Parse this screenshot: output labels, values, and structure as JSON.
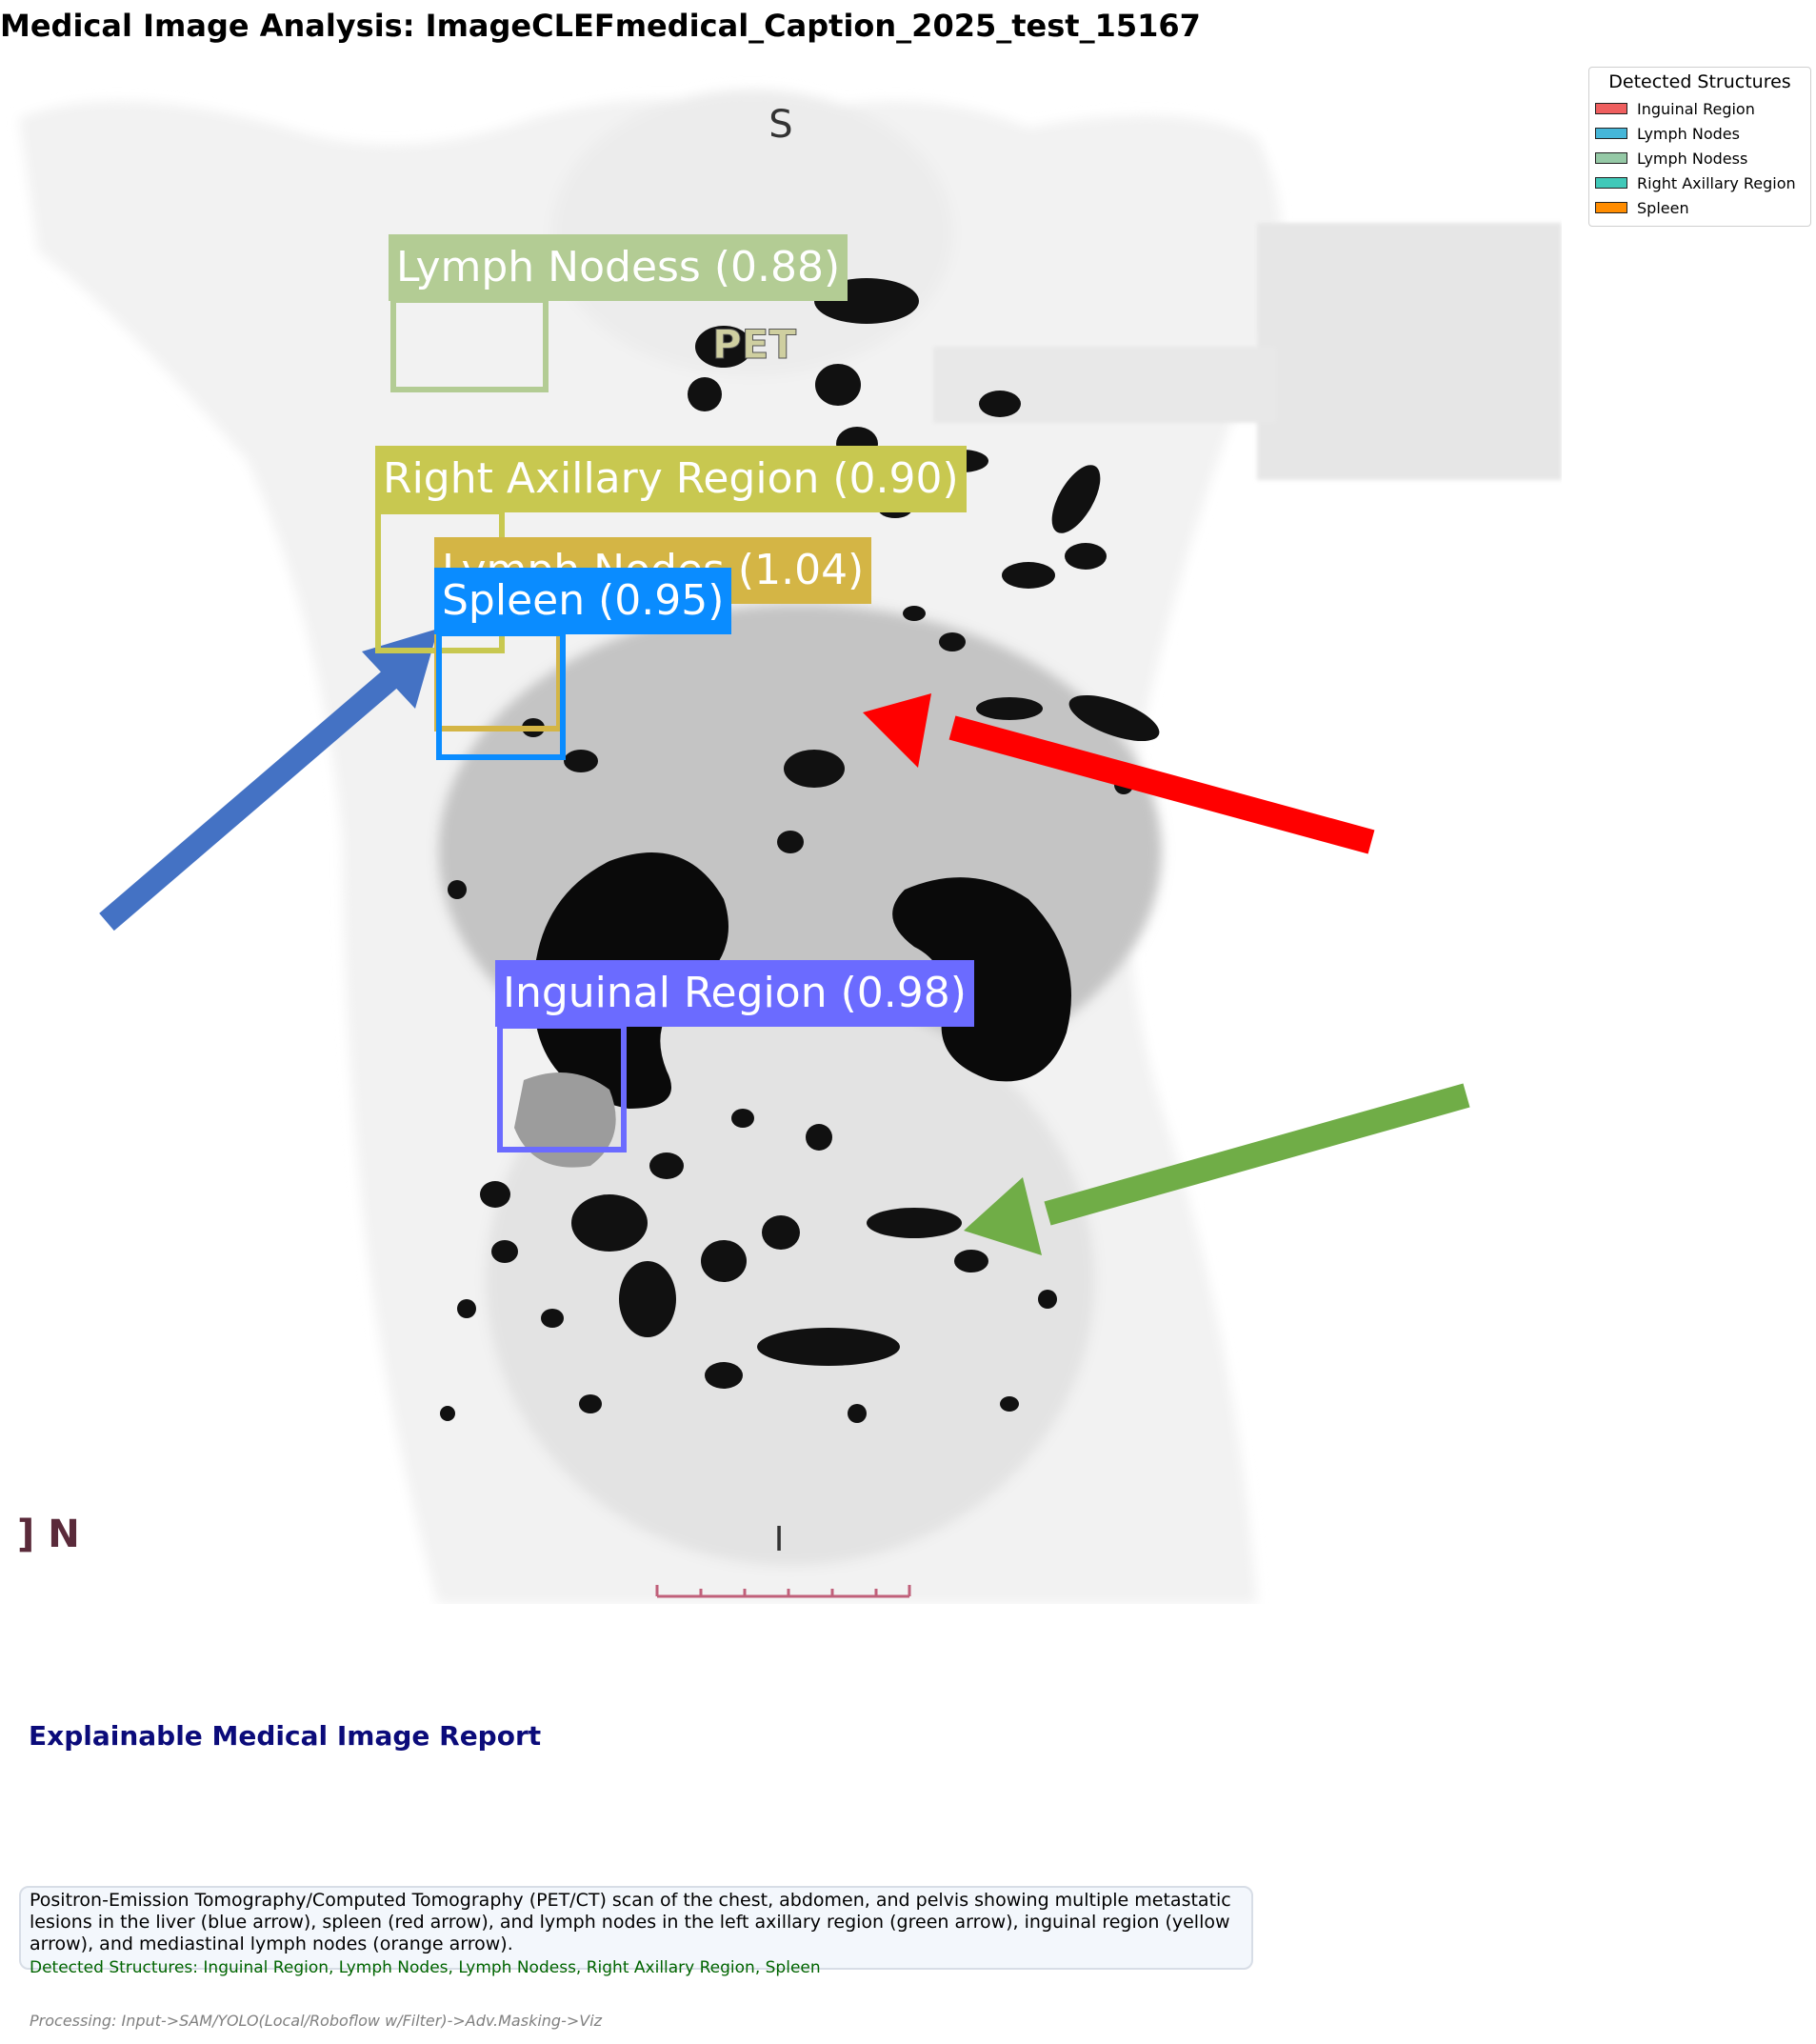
{
  "title": "Medical Image Analysis: ImageCLEFmedical_Caption_2025_test_15167",
  "scan": {
    "marker_top": "S",
    "marker_bottom": "I",
    "marker_left": "] N",
    "header_text": "PET"
  },
  "detections": [
    {
      "label": "Lymph Nodess (0.88)",
      "color": "#b3cc94"
    },
    {
      "label": "Right Axillary Region (0.90)",
      "color": "#c8c850"
    },
    {
      "label": "Lymph Nodes (1.04)",
      "color": "#d4b545"
    },
    {
      "label": "Spleen (0.95)",
      "color": "#0a8cff"
    },
    {
      "label": "Inguinal Region (0.98)",
      "color": "#6b6bff"
    }
  ],
  "arrows": [
    {
      "name": "blue-arrow",
      "color": "#4472c4"
    },
    {
      "name": "red-arrow",
      "color": "#ff0000"
    },
    {
      "name": "green-arrow",
      "color": "#70ad47"
    }
  ],
  "legend": {
    "title": "Detected Structures",
    "items": [
      {
        "label": "Inguinal Region",
        "color": "#ef5f5f"
      },
      {
        "label": "Lymph Nodes",
        "color": "#45b6d8"
      },
      {
        "label": "Lymph Nodess",
        "color": "#95c9a6"
      },
      {
        "label": "Right Axillary Region",
        "color": "#40c9b9"
      },
      {
        "label": "Spleen",
        "color": "#ff8c00"
      }
    ]
  },
  "report": {
    "heading": "Explainable Medical Image Report",
    "caption": "Positron-Emission Tomography/Computed Tomography (PET/CT) scan of the chest, abdomen, and pelvis showing multiple metastatic lesions in the liver (blue arrow), spleen (red arrow), and lymph nodes in the left axillary region (green arrow), inguinal region (yellow arrow), and mediastinal lymph nodes (orange arrow).",
    "detected": "Detected Structures: Inguinal Region, Lymph Nodes, Lymph Nodess, Right Axillary Region, Spleen",
    "processing": "Processing: Input->SAM/YOLO(Local/Roboflow w/Filter)->Adv.Masking->Viz"
  }
}
